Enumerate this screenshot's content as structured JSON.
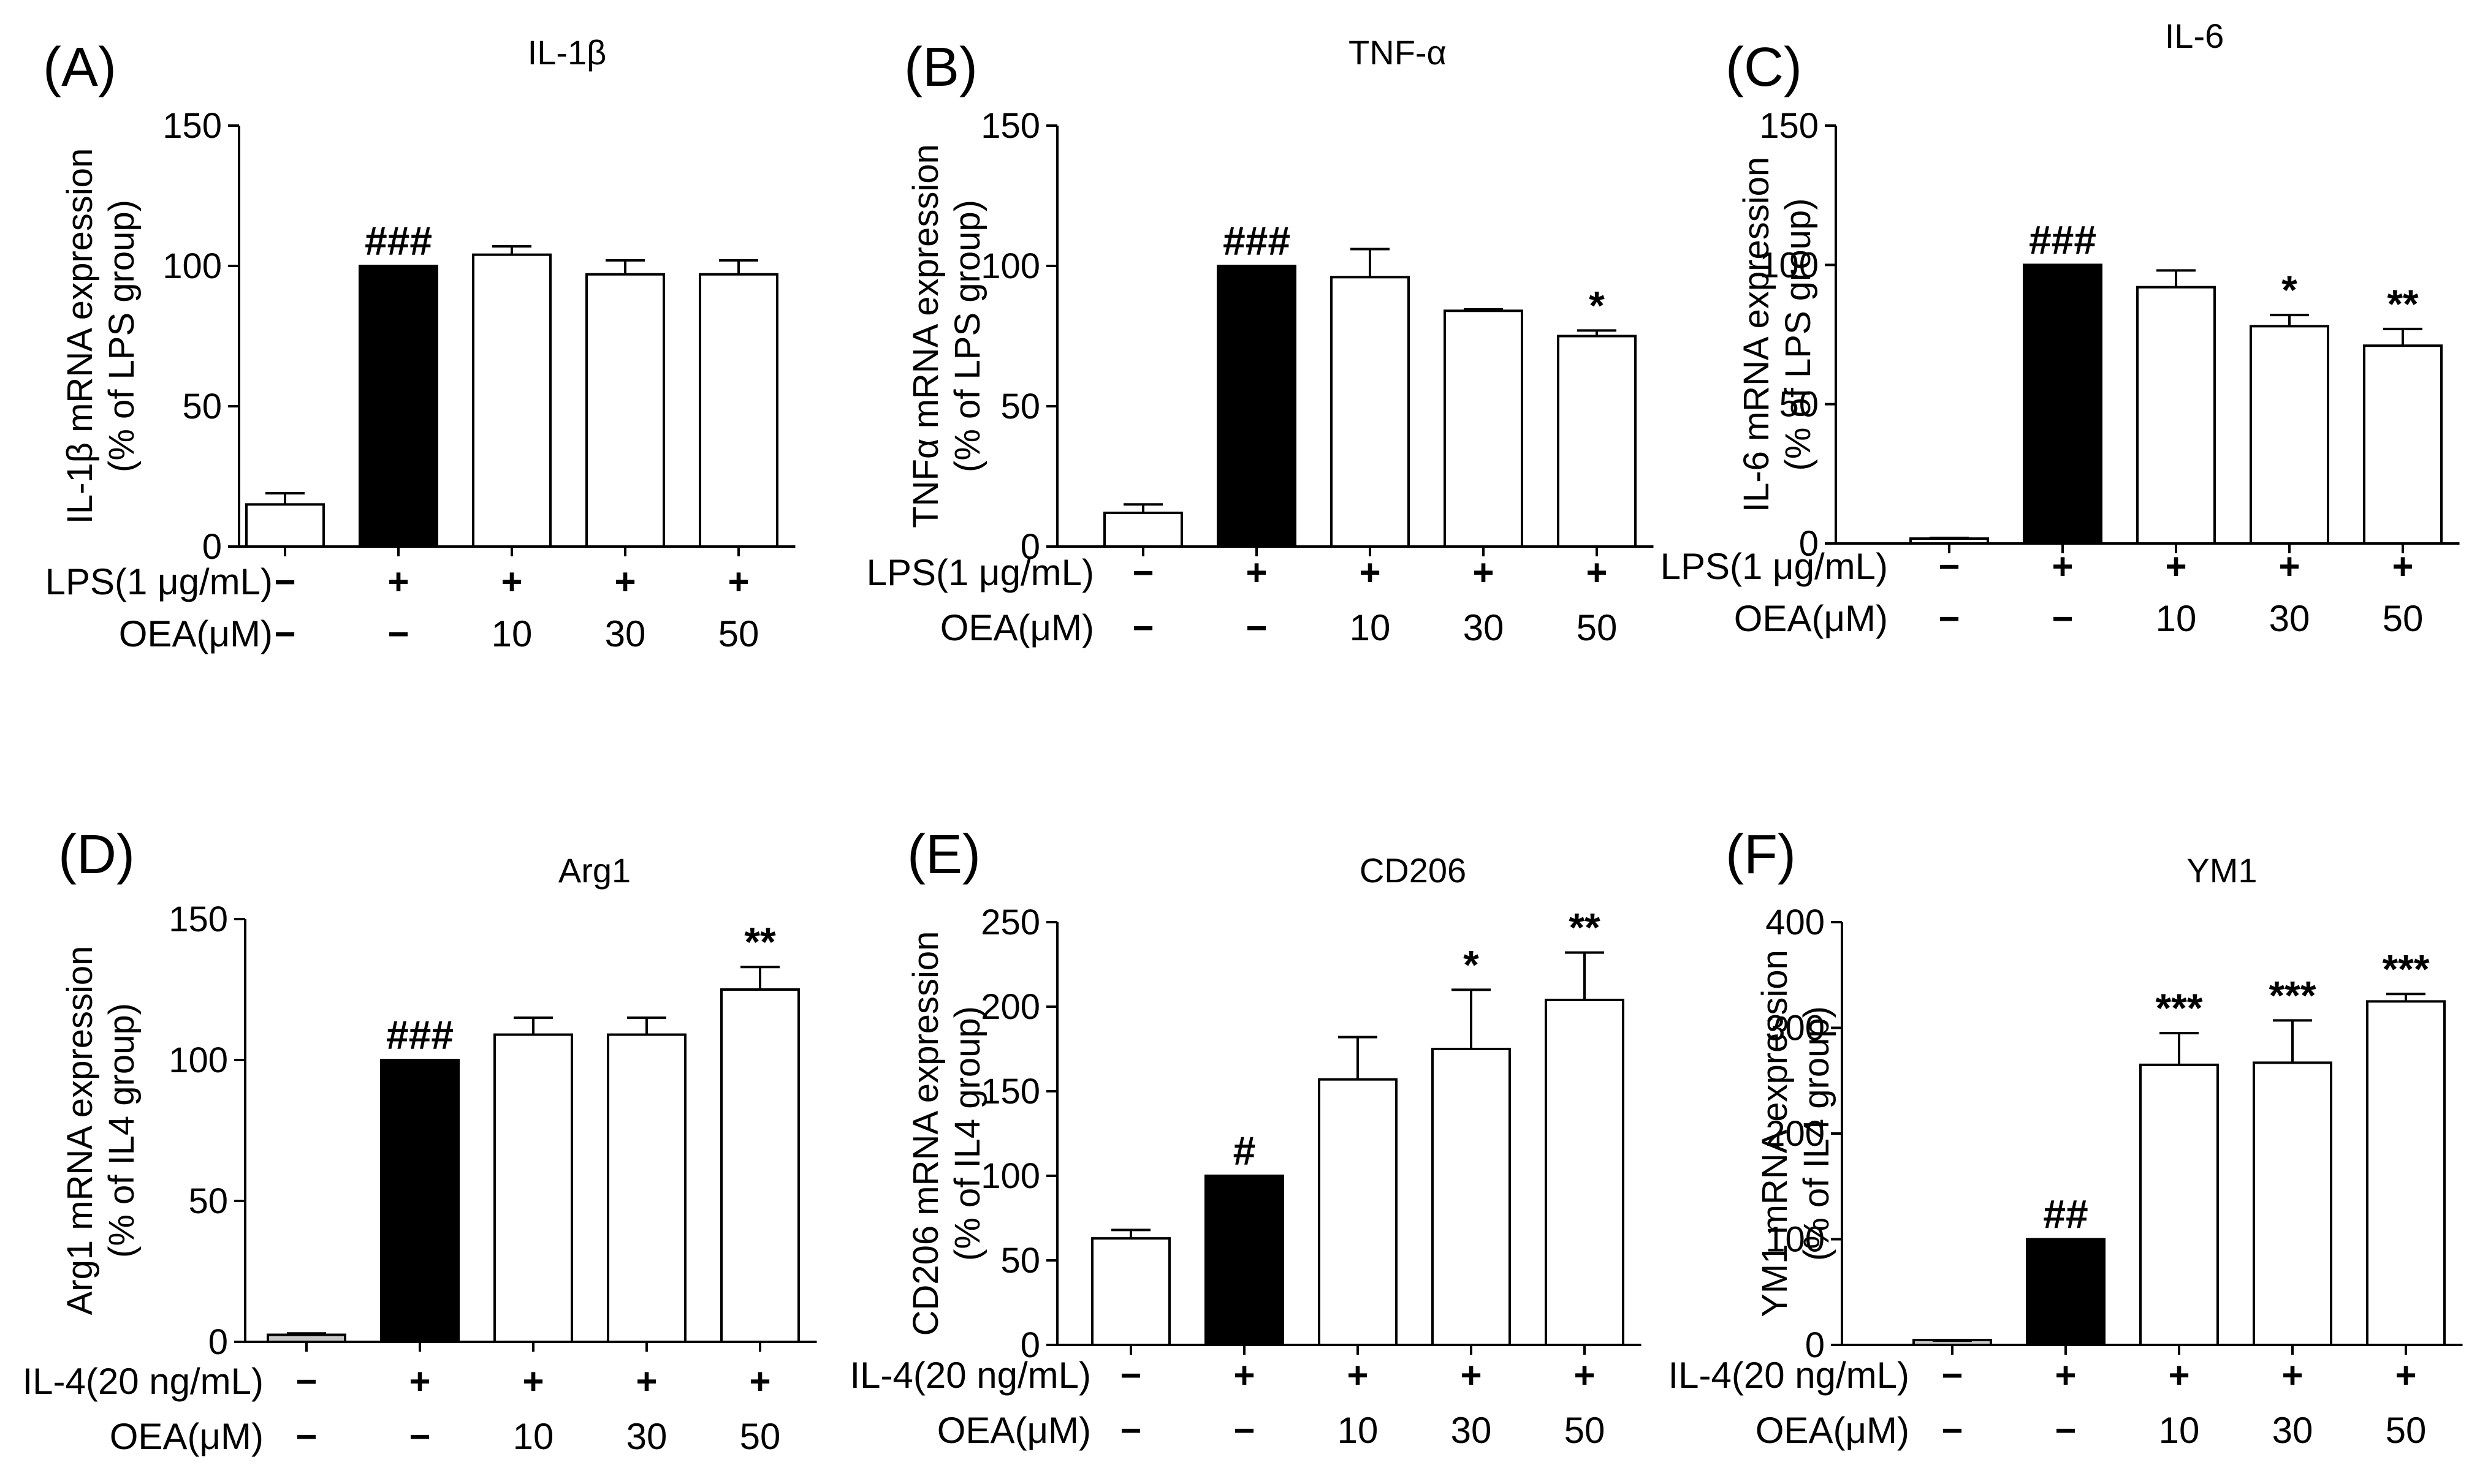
{
  "chart_data": [
    {
      "type": "bar",
      "panel": "(A)",
      "title": "IL-1β",
      "ylabel": [
        "IL-1β mRNA expression",
        "(% of LPS group)"
      ],
      "ylim": [
        0,
        150
      ],
      "yticks": [
        0,
        50,
        100,
        150
      ],
      "categories": [
        "Control",
        "LPS",
        "LPS+OEA 10",
        "LPS+OEA 30",
        "LPS+OEA 50"
      ],
      "values": [
        15,
        100,
        104,
        97,
        97
      ],
      "errors": [
        4,
        0,
        3,
        5,
        5
      ],
      "fills": [
        "#ffffff",
        "#000000",
        "#ffffff",
        "#ffffff",
        "#ffffff"
      ],
      "annotations": [
        "",
        "###",
        "",
        "",
        ""
      ],
      "condition_rows": [
        {
          "label": "LPS(1 μg/mL)",
          "values": [
            "−",
            "+",
            "+",
            "+",
            "+"
          ]
        },
        {
          "label": "OEA(μM)",
          "values": [
            "−",
            "−",
            "10",
            "30",
            "50"
          ]
        }
      ]
    },
    {
      "type": "bar",
      "panel": "(B)",
      "title": "TNF-α",
      "ylabel": [
        "TNFα mRNA expression",
        "(% of LPS group)"
      ],
      "ylim": [
        0,
        150
      ],
      "yticks": [
        0,
        50,
        100,
        150
      ],
      "categories": [
        "Control",
        "LPS",
        "LPS+OEA 10",
        "LPS+OEA 30",
        "LPS+OEA 50"
      ],
      "values": [
        12,
        100,
        96,
        84,
        75
      ],
      "errors": [
        3,
        0,
        10,
        0.5,
        2
      ],
      "fills": [
        "#ffffff",
        "#000000",
        "#ffffff",
        "#ffffff",
        "#ffffff"
      ],
      "annotations": [
        "",
        "###",
        "",
        "",
        "*"
      ],
      "condition_rows": [
        {
          "label": "LPS(1 μg/mL)",
          "values": [
            "−",
            "+",
            "+",
            "+",
            "+"
          ]
        },
        {
          "label": "OEA(μM)",
          "values": [
            "−",
            "−",
            "10",
            "30",
            "50"
          ]
        }
      ]
    },
    {
      "type": "bar",
      "panel": "(C)",
      "title": "IL-6",
      "ylabel": [
        "IL-6 mRNA expression",
        "(% of LPS group)"
      ],
      "ylim": [
        0,
        150
      ],
      "yticks": [
        0,
        50,
        100,
        150
      ],
      "categories": [
        "Control",
        "LPS",
        "LPS+OEA 10",
        "LPS+OEA 30",
        "LPS+OEA 50"
      ],
      "values": [
        1.5,
        100,
        92,
        78,
        71
      ],
      "errors": [
        0.5,
        0,
        6,
        4,
        6
      ],
      "fills": [
        "#ffffff",
        "#000000",
        "#ffffff",
        "#ffffff",
        "#ffffff"
      ],
      "annotations": [
        "",
        "###",
        "",
        "*",
        "**"
      ],
      "condition_rows": [
        {
          "label": "LPS(1 μg/mL)",
          "values": [
            "−",
            "+",
            "+",
            "+",
            "+"
          ]
        },
        {
          "label": "OEA(μM)",
          "values": [
            "−",
            "−",
            "10",
            "30",
            "50"
          ]
        }
      ]
    },
    {
      "type": "bar",
      "panel": "(D)",
      "title": "Arg1",
      "ylabel": [
        "Arg1 mRNA expression",
        "(% of IL4 group)"
      ],
      "ylim": [
        0,
        150
      ],
      "yticks": [
        0,
        50,
        100,
        150
      ],
      "categories": [
        "Control",
        "IL-4",
        "IL-4+OEA 10",
        "IL-4+OEA 30",
        "IL-4+OEA 50"
      ],
      "values": [
        2.5,
        100,
        109,
        109,
        125
      ],
      "errors": [
        0.5,
        0,
        6,
        6,
        8
      ],
      "fills": [
        "#c8c8c8",
        "#000000",
        "#ffffff",
        "#ffffff",
        "#ffffff"
      ],
      "annotations": [
        "",
        "###",
        "",
        "",
        "**"
      ],
      "condition_rows": [
        {
          "label": "IL-4(20 ng/mL)",
          "values": [
            "−",
            "+",
            "+",
            "+",
            "+"
          ]
        },
        {
          "label": "OEA(μM)",
          "values": [
            "−",
            "−",
            "10",
            "30",
            "50"
          ]
        }
      ]
    },
    {
      "type": "bar",
      "panel": "(E)",
      "title": "CD206",
      "ylabel": [
        "CD206 mRNA expression",
        "(% of IL4 group)"
      ],
      "ylim": [
        0,
        250
      ],
      "yticks": [
        0,
        50,
        100,
        150,
        200,
        250
      ],
      "categories": [
        "Control",
        "IL-4",
        "IL-4+OEA 10",
        "IL-4+OEA 30",
        "IL-4+OEA 50"
      ],
      "values": [
        63,
        100,
        157,
        175,
        204
      ],
      "errors": [
        5,
        0,
        25,
        35,
        28
      ],
      "fills": [
        "#ffffff",
        "#000000",
        "#ffffff",
        "#ffffff",
        "#ffffff"
      ],
      "annotations": [
        "",
        "#",
        "",
        "*",
        "**"
      ],
      "condition_rows": [
        {
          "label": "IL-4(20 ng/mL)",
          "values": [
            "−",
            "+",
            "+",
            "+",
            "+"
          ]
        },
        {
          "label": "OEA(μM)",
          "values": [
            "−",
            "−",
            "10",
            "30",
            "50"
          ]
        }
      ]
    },
    {
      "type": "bar",
      "panel": "(F)",
      "title": "YM1",
      "ylabel": [
        "YM1 mRNA expression",
        "(% of IL4 group)"
      ],
      "ylim": [
        0,
        400
      ],
      "yticks": [
        0,
        100,
        200,
        300,
        400
      ],
      "categories": [
        "Control",
        "IL-4",
        "IL-4+OEA 10",
        "IL-4+OEA 30",
        "IL-4+OEA 50"
      ],
      "values": [
        3,
        100,
        265,
        267,
        325
      ],
      "errors": [
        1,
        0,
        30,
        40,
        7
      ],
      "fills": [
        "#c8c8c8",
        "#000000",
        "#ffffff",
        "#ffffff",
        "#ffffff"
      ],
      "annotations": [
        "",
        "##",
        "***",
        "***",
        "***"
      ],
      "condition_rows": [
        {
          "label": "IL-4(20 ng/mL)",
          "values": [
            "−",
            "+",
            "+",
            "+",
            "+"
          ]
        },
        {
          "label": "OEA(μM)",
          "values": [
            "−",
            "−",
            "10",
            "30",
            "50"
          ]
        }
      ]
    }
  ]
}
